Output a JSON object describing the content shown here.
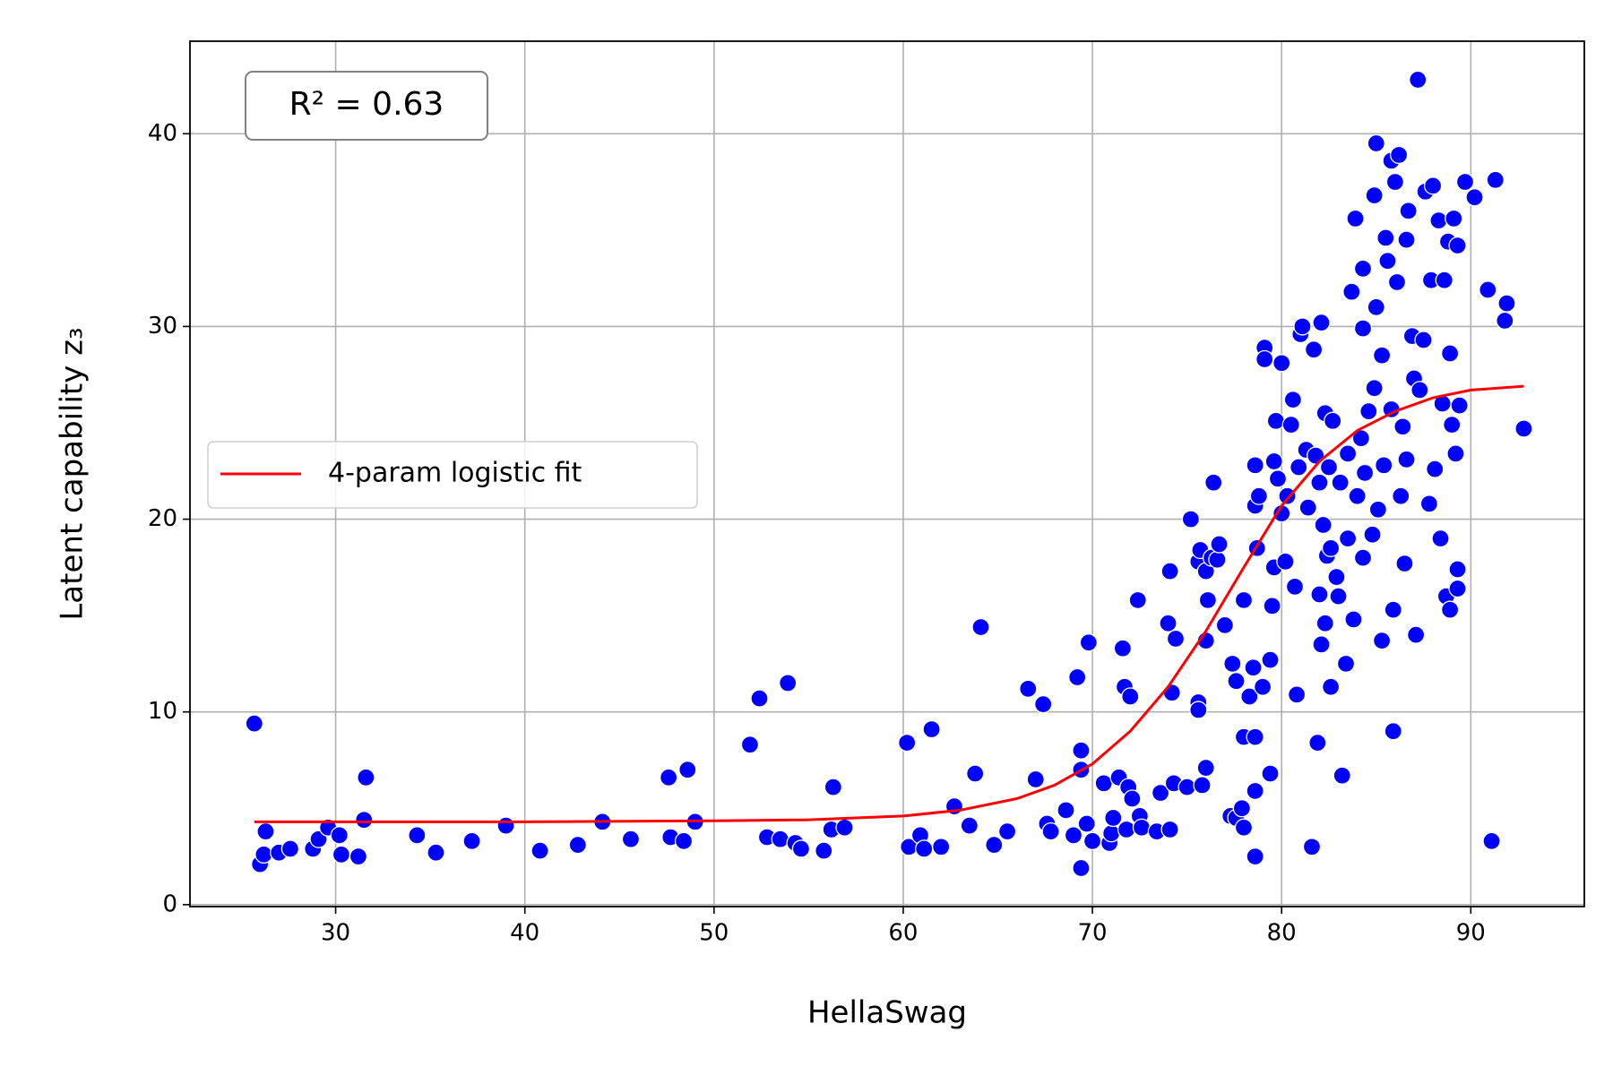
{
  "chart_data": {
    "type": "scatter",
    "xlabel": "HellaSwag",
    "ylabel": "Latent capability z₃",
    "annotation": "R² = 0.63",
    "xlim": [
      22.3,
      96.0
    ],
    "ylim": [
      -0.1,
      44.8
    ],
    "xticks": [
      30,
      40,
      50,
      60,
      70,
      80,
      90
    ],
    "yticks": [
      0,
      10,
      20,
      30,
      40
    ],
    "grid": true,
    "legend_position": "center left",
    "series": [
      {
        "color": "#0000ff",
        "x": [
          25.7,
          26,
          26.2,
          26.3,
          27,
          27.6,
          28.8,
          29.1,
          29.6,
          30.2,
          30.3,
          31.2,
          31.5,
          31.6,
          34.3,
          35.3,
          37.2,
          39,
          40.8,
          42.8,
          44.1,
          45.6,
          47.6,
          47.7,
          48.4,
          48.6,
          49,
          51.9,
          52.4,
          52.8,
          53.5,
          53.9,
          54.3,
          54.6,
          55.8,
          56.2,
          56.3,
          56.9,
          60.2,
          60.3,
          60.9,
          61.1,
          61.5,
          62,
          62.7,
          63.5,
          63.8,
          64.1,
          64.8,
          65.5,
          66.6,
          67,
          67.4,
          67.6,
          67.8,
          68.6,
          69,
          69.2,
          69.4,
          69.4,
          69.4,
          69.7,
          69.8,
          70,
          70.6,
          70.9,
          71,
          71.1,
          71.4,
          71.6,
          71.7,
          71.8,
          71.9,
          72,
          72.1,
          72.4,
          72.5,
          72.6,
          73.4,
          73.6,
          74,
          74.1,
          74.1,
          74.2,
          74.3,
          74.4,
          75,
          75.2,
          75.6,
          75.6,
          75.6,
          75.7,
          75.8,
          76,
          76,
          76,
          76.1,
          76.3,
          76.4,
          76.6,
          76.7,
          77,
          77.3,
          77.4,
          77.6,
          77.6,
          77.9,
          78,
          78,
          78,
          78.3,
          78.5,
          78.6,
          78.6,
          78.6,
          78.6,
          78.6,
          78.7,
          78.8,
          79,
          79.1,
          79.1,
          79.4,
          79.4,
          79.5,
          79.6,
          79.6,
          79.7,
          79.8,
          80,
          80,
          80.2,
          80.3,
          80.5,
          80.6,
          80.7,
          80.8,
          80.9,
          81,
          81.1,
          81.3,
          81.4,
          81.6,
          81.7,
          81.8,
          81.9,
          82,
          82,
          82.1,
          82.1,
          82.2,
          82.3,
          82.3,
          82.4,
          82.5,
          82.6,
          82.6,
          82.7,
          82.9,
          83,
          83.1,
          83.2,
          83.4,
          83.5,
          83.5,
          83.7,
          83.8,
          83.9,
          84,
          84.2,
          84.3,
          84.3,
          84.3,
          84.4,
          84.6,
          84.8,
          84.9,
          84.9,
          85,
          85,
          85.1,
          85.3,
          85.3,
          85.4,
          85.5,
          85.6,
          85.8,
          85.8,
          85.9,
          85.9,
          86,
          86.1,
          86.2,
          86.3,
          86.4,
          86.5,
          86.6,
          86.6,
          86.7,
          86.9,
          87,
          87.1,
          87.2,
          87.3,
          87.5,
          87.6,
          87.8,
          87.9,
          88,
          88.1,
          88.3,
          88.4,
          88.5,
          88.6,
          88.7,
          88.8,
          88.9,
          88.9,
          89,
          89.1,
          89.2,
          89.3,
          89.3,
          89.3,
          89.4,
          89.7,
          90.2,
          90.9,
          91.1,
          91.3,
          91.8,
          91.9,
          92.8
        ],
        "values": [
          9.4,
          2.1,
          2.6,
          3.8,
          2.7,
          2.9,
          2.9,
          3.4,
          4,
          3.6,
          2.6,
          2.5,
          4.4,
          6.6,
          3.6,
          2.7,
          3.3,
          4.1,
          2.8,
          3.1,
          4.3,
          3.4,
          6.6,
          3.5,
          3.3,
          7,
          4.3,
          8.3,
          10.7,
          3.5,
          3.4,
          11.5,
          3.2,
          2.9,
          2.8,
          3.9,
          6.1,
          4,
          8.4,
          3,
          3.6,
          2.9,
          9.1,
          3,
          5.1,
          4.1,
          6.8,
          14.4,
          3.1,
          3.8,
          11.2,
          6.5,
          10.4,
          4.2,
          3.8,
          4.9,
          3.6,
          11.8,
          8,
          7,
          1.9,
          4.2,
          13.6,
          3.3,
          6.3,
          3.2,
          3.7,
          4.5,
          6.6,
          13.3,
          11.3,
          3.9,
          6.1,
          10.8,
          5.5,
          15.8,
          4.6,
          4,
          3.8,
          5.8,
          14.6,
          3.9,
          17.3,
          11,
          6.3,
          13.8,
          6.1,
          20,
          10.5,
          10.1,
          17.8,
          18.4,
          6.2,
          7.1,
          13.7,
          17.3,
          15.8,
          18,
          21.9,
          17.9,
          18.7,
          14.5,
          4.6,
          12.5,
          11.6,
          4.5,
          5,
          8.7,
          15.8,
          4,
          10.8,
          12.3,
          22.8,
          20.7,
          8.7,
          5.9,
          2.5,
          18.5,
          21.2,
          11.3,
          28.9,
          28.3,
          12.7,
          6.8,
          15.5,
          23,
          17.5,
          25.1,
          22.1,
          20.3,
          28.1,
          17.8,
          21.2,
          24.9,
          26.2,
          16.5,
          10.9,
          22.7,
          29.6,
          30,
          23.6,
          20.6,
          3,
          28.8,
          23.3,
          8.4,
          21.9,
          16.1,
          30.2,
          13.5,
          19.7,
          25.5,
          14.6,
          18.1,
          22.7,
          11.3,
          18.5,
          25.1,
          17,
          16,
          21.9,
          6.7,
          12.5,
          23.4,
          19,
          31.8,
          14.8,
          35.6,
          21.2,
          24.2,
          18,
          29.9,
          33,
          22.4,
          25.6,
          19.2,
          26.8,
          36.8,
          39.5,
          31,
          20.5,
          28.5,
          13.7,
          22.8,
          34.6,
          33.4,
          38.6,
          25.7,
          15.3,
          9,
          37.5,
          32.3,
          38.9,
          21.2,
          24.8,
          17.7,
          23.1,
          34.5,
          36,
          29.5,
          27.3,
          14,
          42.8,
          26.7,
          29.3,
          37,
          20.8,
          32.4,
          37.3,
          22.6,
          35.5,
          19,
          26,
          32.4,
          16,
          34.4,
          28.6,
          15.3,
          24.9,
          35.6,
          23.4,
          34.2,
          17.4,
          16.4,
          25.9,
          37.5,
          36.7,
          31.9,
          3.3,
          37.6,
          30.3,
          31.2,
          24.7
        ]
      },
      {
        "type": "line",
        "name": "4-param logistic fit",
        "color": "#ff0000",
        "x": [
          25.7,
          40,
          50,
          55,
          60,
          63,
          66,
          68,
          70,
          72,
          74,
          76,
          78,
          80,
          82,
          84,
          86,
          88,
          90,
          92.8
        ],
        "values": [
          4.3,
          4.3,
          4.35,
          4.4,
          4.6,
          4.9,
          5.5,
          6.2,
          7.3,
          9.0,
          11.3,
          14.2,
          17.5,
          20.7,
          23.0,
          24.6,
          25.6,
          26.3,
          26.7,
          26.9
        ]
      }
    ]
  }
}
